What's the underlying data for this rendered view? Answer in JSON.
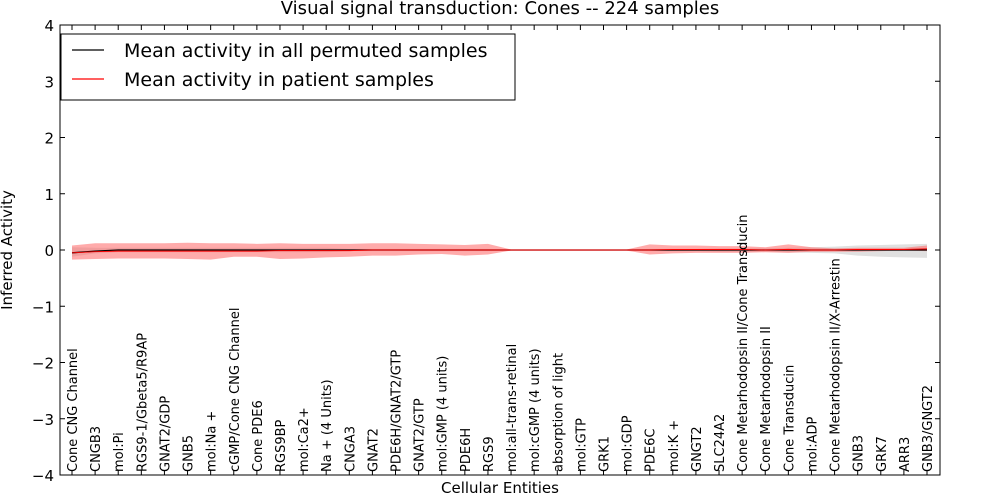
{
  "chart_data": {
    "type": "line",
    "title": "Visual signal transduction: Cones -- 224 samples",
    "xlabel": "Cellular Entities",
    "ylabel": "Inferred Activity",
    "ylim": [
      -4,
      4
    ],
    "yticks": [
      -4,
      -3,
      -2,
      -1,
      0,
      1,
      2,
      3,
      4
    ],
    "legend_position": "top-left",
    "categories": [
      "Cone CNG Channel",
      "CNGB3",
      "mol:Pi",
      "RGS9-1/Gbeta5/R9AP",
      "GNAT2/GDP",
      "GNB5",
      "mol:Na +",
      "cGMP/Cone CNG Channel",
      "Cone PDE6",
      "RGS9BP",
      "mol:Ca2+",
      "Na + (4 Units)",
      "CNGA3",
      "GNAT2",
      "PDE6H/GNAT2/GTP",
      "GNAT2/GTP",
      "mol:GMP (4 units)",
      "PDE6H",
      "RGS9",
      "mol:all-trans-retinal",
      "mol:cGMP (4 units)",
      "absorption of light",
      "mol:GTP",
      "GRK1",
      "mol:GDP",
      "PDE6C",
      "mol:K +",
      "GNGT2",
      "SLC24A2",
      "Cone Metarhodopsin II/Cone Transducin",
      "Cone Metarhodopsin II",
      "Cone Transducin",
      "mol:ADP",
      "Cone Metarhodopsin II/X-Arrestin",
      "GNB3",
      "GRK7",
      "ARR3",
      "GNB3/GNGT2"
    ],
    "series": [
      {
        "name": "Mean activity in all permuted samples",
        "color": "#000000",
        "values": [
          -0.05,
          -0.02,
          0,
          0,
          0,
          0,
          0,
          0,
          0,
          0,
          0,
          0,
          0,
          0,
          0,
          0,
          0,
          0,
          0,
          0,
          0,
          0,
          0,
          0,
          0,
          0,
          0,
          0,
          0,
          0,
          0,
          0,
          0,
          0,
          0,
          0,
          0,
          0
        ],
        "band_lower": [
          -0.12,
          -0.06,
          -0.04,
          -0.04,
          -0.04,
          -0.04,
          -0.04,
          -0.04,
          -0.04,
          -0.04,
          -0.04,
          -0.04,
          -0.02,
          -0.02,
          -0.02,
          -0.02,
          -0.02,
          -0.02,
          -0.02,
          -0.01,
          -0.01,
          -0.01,
          -0.01,
          -0.01,
          -0.01,
          -0.02,
          -0.02,
          -0.02,
          -0.03,
          -0.03,
          -0.03,
          -0.04,
          -0.05,
          -0.06,
          -0.1,
          -0.12,
          -0.13,
          -0.14
        ],
        "band_upper": [
          0.05,
          0.04,
          0.04,
          0.04,
          0.04,
          0.04,
          0.04,
          0.04,
          0.04,
          0.04,
          0.04,
          0.04,
          0.02,
          0.02,
          0.02,
          0.02,
          0.02,
          0.02,
          0.02,
          0.01,
          0.01,
          0.01,
          0.01,
          0.01,
          0.01,
          0.02,
          0.02,
          0.02,
          0.03,
          0.03,
          0.03,
          0.04,
          0.05,
          0.06,
          0.08,
          0.09,
          0.1,
          0.11
        ],
        "band_color": "#bbbbbb"
      },
      {
        "name": "Mean activity in patient samples",
        "color": "#ff0000",
        "values": [
          -0.05,
          -0.03,
          -0.02,
          -0.02,
          -0.02,
          -0.02,
          -0.02,
          -0.02,
          -0.02,
          -0.01,
          -0.01,
          -0.01,
          -0.01,
          0,
          0,
          0,
          0,
          0,
          0,
          0,
          0,
          0,
          0,
          0,
          0,
          0,
          0.01,
          0.01,
          0.01,
          0.01,
          0,
          0.01,
          0,
          0,
          0.01,
          0.01,
          0.01,
          0.02
        ],
        "band_lower": [
          -0.17,
          -0.16,
          -0.15,
          -0.15,
          -0.15,
          -0.16,
          -0.17,
          -0.12,
          -0.12,
          -0.16,
          -0.15,
          -0.13,
          -0.12,
          -0.1,
          -0.1,
          -0.08,
          -0.07,
          -0.1,
          -0.08,
          -0.01,
          -0.01,
          -0.01,
          -0.01,
          -0.01,
          -0.01,
          -0.08,
          -0.06,
          -0.05,
          -0.05,
          -0.05,
          -0.04,
          -0.05,
          -0.03,
          -0.03,
          -0.03,
          -0.02,
          -0.01,
          -0.02
        ],
        "band_upper": [
          0.08,
          0.12,
          0.12,
          0.12,
          0.12,
          0.13,
          0.12,
          0.12,
          0.11,
          0.12,
          0.11,
          0.11,
          0.11,
          0.12,
          0.12,
          0.11,
          0.1,
          0.09,
          0.11,
          0.01,
          0.01,
          0.01,
          0.01,
          0.01,
          0.01,
          0.1,
          0.08,
          0.08,
          0.07,
          0.07,
          0.05,
          0.1,
          0.05,
          0.03,
          0.04,
          0.04,
          0.04,
          0.08
        ],
        "band_color": "#ff6666"
      }
    ]
  }
}
